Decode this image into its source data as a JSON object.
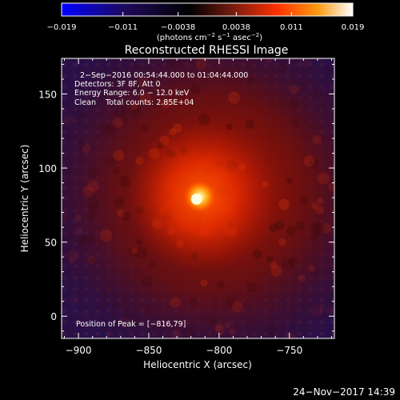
{
  "chart_data": {
    "type": "heatmap",
    "title": "Reconstructed RHESSI Image",
    "xlabel": "Heliocentric X (arcsec)",
    "ylabel": "Heliocentric Y (arcsec)",
    "xlim": [
      -912,
      -718
    ],
    "ylim": [
      -15,
      174
    ],
    "x_ticks": [
      -900,
      -850,
      -800,
      -750
    ],
    "x_tick_labels": [
      "−900",
      "−850",
      "−800",
      "−750"
    ],
    "y_ticks": [
      0,
      50,
      100,
      150
    ],
    "y_tick_labels": [
      "0",
      "50",
      "100",
      "150"
    ],
    "colorbar": {
      "range": [
        -0.019,
        0.019
      ],
      "ticks": [
        -0.019,
        -0.011,
        -0.0038,
        0.0038,
        0.011,
        0.019
      ],
      "tick_labels": [
        "−0.019",
        "−0.011",
        "−0.0038",
        "0.0038",
        "0.011",
        "0.019"
      ],
      "label_main": "(photons cm",
      "label_exp1": "−2",
      "label_mid1": " s",
      "label_exp2": "−1",
      "label_mid2": " asec",
      "label_exp3": "−2",
      "label_end": ")",
      "stops": [
        "#0000ff",
        "#1e0a5a",
        "#000000",
        "#701a10",
        "#ff3000",
        "#ff9a10",
        "#ffffff"
      ]
    },
    "peak": {
      "x": -816,
      "y": 79
    },
    "source_center": [
      -805,
      83
    ],
    "source_radius_arcsec": 60,
    "annotations": [
      "2−Sep−2016 00:54:44.000 to 01:04:44.000",
      "Detectors: 3F 8F, Att 0",
      "Energy Range: 6.0 − 12.0 keV",
      "Clean    Total counts: 2.85E+04"
    ],
    "peak_label": "Position of Peak = [−816,79]"
  },
  "footer": {
    "timestamp": "24−Nov−2017 14:39"
  }
}
